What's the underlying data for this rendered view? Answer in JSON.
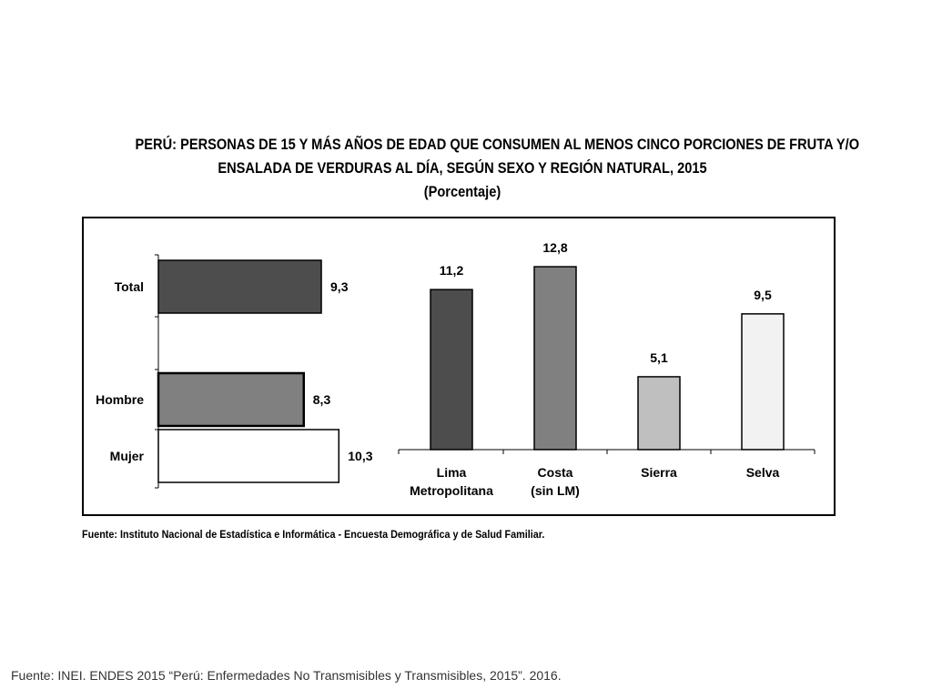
{
  "title_lines": [
    "PERÚ: PERSONAS DE 15 Y MÁS AÑOS DE EDAD QUE CONSUMEN AL MENOS  CINCO PORCIONES DE FRUTA Y/O",
    "ENSALADA DE VERDURAS AL DÍA, SEGÚN SEXO Y REGIÓN NATURAL, 2015",
    "(Porcentaje)"
  ],
  "source_note": "Fuente: Instituto Nacional de Estadística e Informática - Encuesta Demográfica y de Salud Familiar.",
  "footer_text": "Fuente: INEI. ENDES 2015 “Perú: Enfermedades No Transmisibles y Transmisibles, 2015”. 2016.",
  "chart_data": [
    {
      "type": "bar",
      "orientation": "horizontal",
      "categories": [
        "Total",
        "Hombre",
        "Mujer"
      ],
      "values": [
        9.3,
        8.3,
        10.3
      ],
      "value_labels": [
        "9,3",
        "8,3",
        "10,3"
      ],
      "colors": [
        "#4d4d4d",
        "#808080",
        "#ffffff"
      ],
      "xlim": [
        0,
        12
      ],
      "title": "",
      "xlabel": "",
      "ylabel": ""
    },
    {
      "type": "bar",
      "orientation": "vertical",
      "categories": [
        [
          "Lima",
          "Metropolitana"
        ],
        [
          "Costa",
          "(sin LM)"
        ],
        [
          "Sierra"
        ],
        [
          "Selva"
        ]
      ],
      "values": [
        11.2,
        12.8,
        5.1,
        9.5
      ],
      "value_labels": [
        "11,2",
        "12,8",
        "5,1",
        "9,5"
      ],
      "colors": [
        "#4d4d4d",
        "#808080",
        "#bfbfbf",
        "#f2f2f2"
      ],
      "ylim": [
        0,
        15
      ],
      "title": "",
      "xlabel": "",
      "ylabel": ""
    }
  ]
}
